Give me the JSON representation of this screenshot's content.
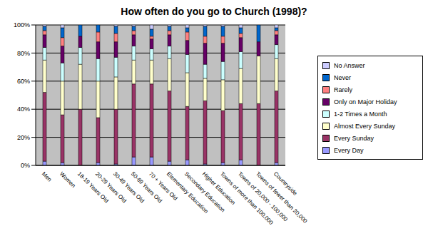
{
  "chart_data": {
    "type": "bar",
    "title": "How often do you go to Church (1998)?",
    "stacked": true,
    "grid": true,
    "legend": "right",
    "categories": [
      "Men",
      "Women",
      "18-19 Years Old",
      "20-29 Years Old",
      "30-49 Years Old",
      "50-69 Years Old",
      "70 + Years Old",
      "Elementary Education",
      "Secondary Education",
      "Higher Education",
      "Towns of more than 100,000",
      "Towns of 20,000 - 100,000",
      "Towns of fewer than 20,000",
      "Countryside"
    ],
    "ylim": [
      0,
      100
    ],
    "yticks": [
      {
        "value": 0,
        "label": "0%"
      },
      {
        "value": 20,
        "label": "20%"
      },
      {
        "value": 40,
        "label": "40%"
      },
      {
        "value": 60,
        "label": "60%"
      },
      {
        "value": 80,
        "label": "80%"
      },
      {
        "value": 100,
        "label": "100%"
      }
    ],
    "series": [
      {
        "name": "Every Day",
        "color": "#9999FF",
        "values": [
          3,
          2,
          0,
          2,
          1,
          6,
          6,
          3,
          4,
          1,
          2,
          4,
          0,
          2
        ]
      },
      {
        "name": "Every Sunday",
        "color": "#993366",
        "values": [
          49,
          34,
          40,
          32,
          39,
          52,
          52,
          50,
          38,
          45,
          37,
          40,
          44,
          51
        ]
      },
      {
        "name": "Almost Every Sunday",
        "color": "#FFFFCC",
        "values": [
          23,
          24,
          32,
          26,
          23,
          17,
          17,
          23,
          24,
          16,
          22,
          25,
          34,
          23
        ]
      },
      {
        "name": "1-2 Times a Month",
        "color": "#CCFFFF",
        "values": [
          9,
          13,
          12,
          16,
          14,
          10,
          8,
          9,
          13,
          10,
          13,
          12,
          0,
          10
        ]
      },
      {
        "name": "Only on Major Holiday",
        "color": "#660066",
        "values": [
          9,
          12,
          8,
          12,
          11,
          8,
          7,
          8,
          10,
          15,
          13,
          10,
          10,
          7
        ]
      },
      {
        "name": "Rarely",
        "color": "#FF8080",
        "values": [
          3,
          6,
          0,
          7,
          6,
          3,
          2,
          3,
          6,
          5,
          5,
          3,
          0,
          3
        ]
      },
      {
        "name": "Never",
        "color": "#0066CC",
        "values": [
          3,
          7,
          8,
          5,
          5,
          3,
          5,
          3,
          3,
          7,
          7,
          4,
          12,
          2
        ]
      },
      {
        "name": "No Answer",
        "color": "#CCCCFF",
        "values": [
          1,
          2,
          0,
          0,
          1,
          1,
          3,
          1,
          2,
          1,
          1,
          2,
          0,
          2
        ]
      }
    ]
  }
}
